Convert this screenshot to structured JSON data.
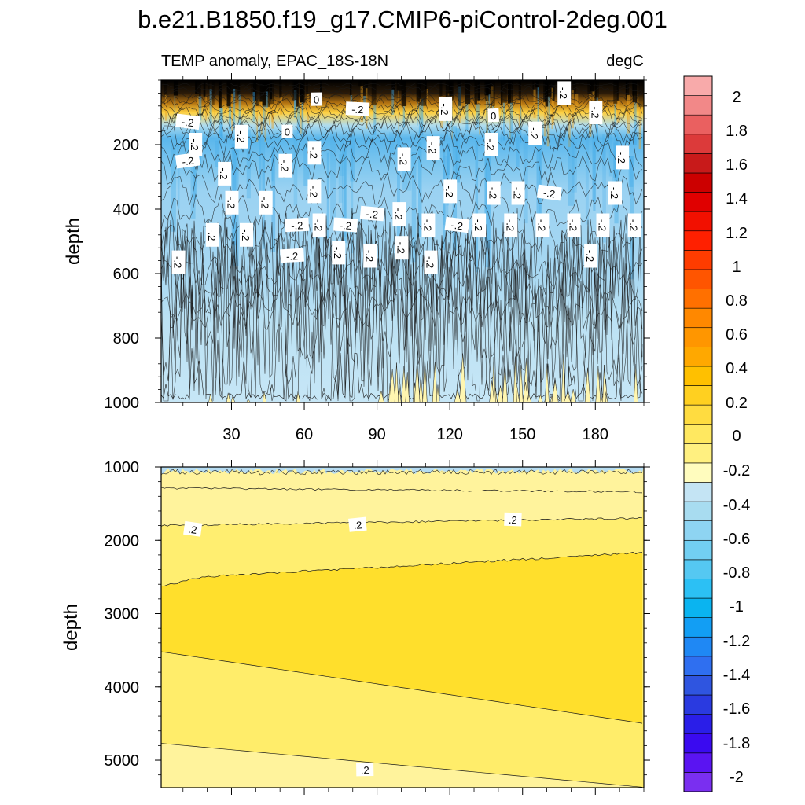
{
  "chart_data": {
    "type": "heatmap",
    "title": "b.e21.B1850.f19_g17.CMIP6-piControl-2deg.001",
    "subtitle_left": "TEMP anomaly, EPAC_18S-18N",
    "subtitle_right": "degC",
    "xticks": [
      30,
      60,
      90,
      120,
      150,
      180
    ],
    "xlim": [
      1,
      200
    ],
    "colorbar": {
      "levels": [
        -2,
        -1.8,
        -1.6,
        -1.4,
        -1.2,
        -1,
        -0.8,
        -0.6,
        -0.4,
        -0.2,
        0,
        0.2,
        0.4,
        0.6,
        0.8,
        1,
        1.2,
        1.4,
        1.6,
        1.8,
        2
      ],
      "labels": [
        "-2",
        "-1.8",
        "-1.6",
        "-1.4",
        "-1.2",
        "-1",
        "-0.8",
        "-0.6",
        "-0.4",
        "-0.2",
        "0",
        "0.2",
        "0.4",
        "0.6",
        "0.8",
        "1",
        "1.2",
        "1.4",
        "1.6",
        "1.8",
        "2"
      ],
      "colors": [
        "#7a2ff0",
        "#5a14f2",
        "#3a0af0",
        "#2a1ee8",
        "#2a3ae0",
        "#2f55e0",
        "#2f6ff0",
        "#1f88f4",
        "#129ef4",
        "#0ab4f0",
        "#2cc0f4",
        "#55c8f2",
        "#72cff2",
        "#8ed4f2",
        "#a8dcf0",
        "#c4e4f4",
        "#fffcbe",
        "#fff080",
        "#ffe860",
        "#ffdc40",
        "#ffd020",
        "#ffc000",
        "#ffa800",
        "#ff9600",
        "#ff8800",
        "#ff7000",
        "#ff5500",
        "#ff3c00",
        "#ff2000",
        "#f21000",
        "#e00000",
        "#cc0000",
        "#c81a1a",
        "#dc3a3a",
        "#ea6060",
        "#f28888",
        "#f8aaaa"
      ]
    },
    "panels": [
      {
        "name": "upper",
        "ylabel": "depth",
        "ylim": [
          0,
          1000
        ],
        "yticks": [
          200,
          400,
          600,
          800,
          1000
        ],
        "contour_labels": [
          {
            "text": "-.2",
            "x": 12,
            "y": 130
          },
          {
            "text": "-.2",
            "x": 15,
            "y": 200
          },
          {
            "text": "-.2",
            "x": 12,
            "y": 250
          },
          {
            "text": "-.2",
            "x": 27,
            "y": 290
          },
          {
            "text": "-.2",
            "x": 34,
            "y": 175
          },
          {
            "text": "0",
            "x": 53,
            "y": 160
          },
          {
            "text": "0",
            "x": 65,
            "y": 60
          },
          {
            "text": "-.2",
            "x": 82,
            "y": 90
          },
          {
            "text": "-.2",
            "x": 118,
            "y": 90
          },
          {
            "text": "0",
            "x": 138,
            "y": 110
          },
          {
            "text": "-.2",
            "x": 167,
            "y": 40
          },
          {
            "text": "-.2",
            "x": 180,
            "y": 100
          },
          {
            "text": "-.2",
            "x": 155,
            "y": 165
          },
          {
            "text": "-.2",
            "x": 137,
            "y": 200
          },
          {
            "text": "-.2",
            "x": 113,
            "y": 210
          },
          {
            "text": "-.2",
            "x": 101,
            "y": 245
          },
          {
            "text": "-.2",
            "x": 64,
            "y": 225
          },
          {
            "text": "-.2",
            "x": 52,
            "y": 265
          },
          {
            "text": "-.2",
            "x": 191,
            "y": 240
          },
          {
            "text": "-.2",
            "x": 30,
            "y": 380
          },
          {
            "text": "-.2",
            "x": 44,
            "y": 380
          },
          {
            "text": "-.2",
            "x": 64,
            "y": 345
          },
          {
            "text": "-.2",
            "x": 120,
            "y": 345
          },
          {
            "text": "-.2",
            "x": 138,
            "y": 350
          },
          {
            "text": "-.2",
            "x": 148,
            "y": 350
          },
          {
            "text": "-.2",
            "x": 161,
            "y": 350
          },
          {
            "text": "-.2",
            "x": 188,
            "y": 350
          },
          {
            "text": "-.2",
            "x": 57,
            "y": 450
          },
          {
            "text": "-.2",
            "x": 66,
            "y": 450
          },
          {
            "text": "-.2",
            "x": 77,
            "y": 450
          },
          {
            "text": "-.2",
            "x": 88,
            "y": 415
          },
          {
            "text": "-.2",
            "x": 99,
            "y": 415
          },
          {
            "text": "-.2",
            "x": 111,
            "y": 450
          },
          {
            "text": "-.2",
            "x": 123,
            "y": 450
          },
          {
            "text": "-.2",
            "x": 132,
            "y": 450
          },
          {
            "text": "-.2",
            "x": 145,
            "y": 450
          },
          {
            "text": "-.2",
            "x": 158,
            "y": 450
          },
          {
            "text": "-.2",
            "x": 171,
            "y": 450
          },
          {
            "text": "-.2",
            "x": 183,
            "y": 450
          },
          {
            "text": "-.2",
            "x": 196,
            "y": 450
          },
          {
            "text": "-.2",
            "x": 22,
            "y": 480
          },
          {
            "text": "-.2",
            "x": 36,
            "y": 480
          },
          {
            "text": "-.2",
            "x": 74,
            "y": 535
          },
          {
            "text": "-.2",
            "x": 87,
            "y": 545
          },
          {
            "text": "-.2",
            "x": 100,
            "y": 520
          },
          {
            "text": "-.2",
            "x": 112,
            "y": 565
          },
          {
            "text": "-.2",
            "x": 55,
            "y": 545
          },
          {
            "text": "-.2",
            "x": 8,
            "y": 565
          },
          {
            "text": "-.2",
            "x": 178,
            "y": 545
          }
        ]
      },
      {
        "name": "lower",
        "ylabel": "depth",
        "ylim": [
          1000,
          5375
        ],
        "yticks": [
          1000,
          2000,
          3000,
          4000,
          5000
        ],
        "contour_labels": [
          {
            "text": ".2",
            "x": 14,
            "y": 1850
          },
          {
            "text": ".2",
            "x": 82,
            "y": 1790
          },
          {
            "text": ".2",
            "x": 146,
            "y": 1720
          },
          {
            "text": ".2",
            "x": 85,
            "y": 5130
          }
        ]
      }
    ]
  }
}
